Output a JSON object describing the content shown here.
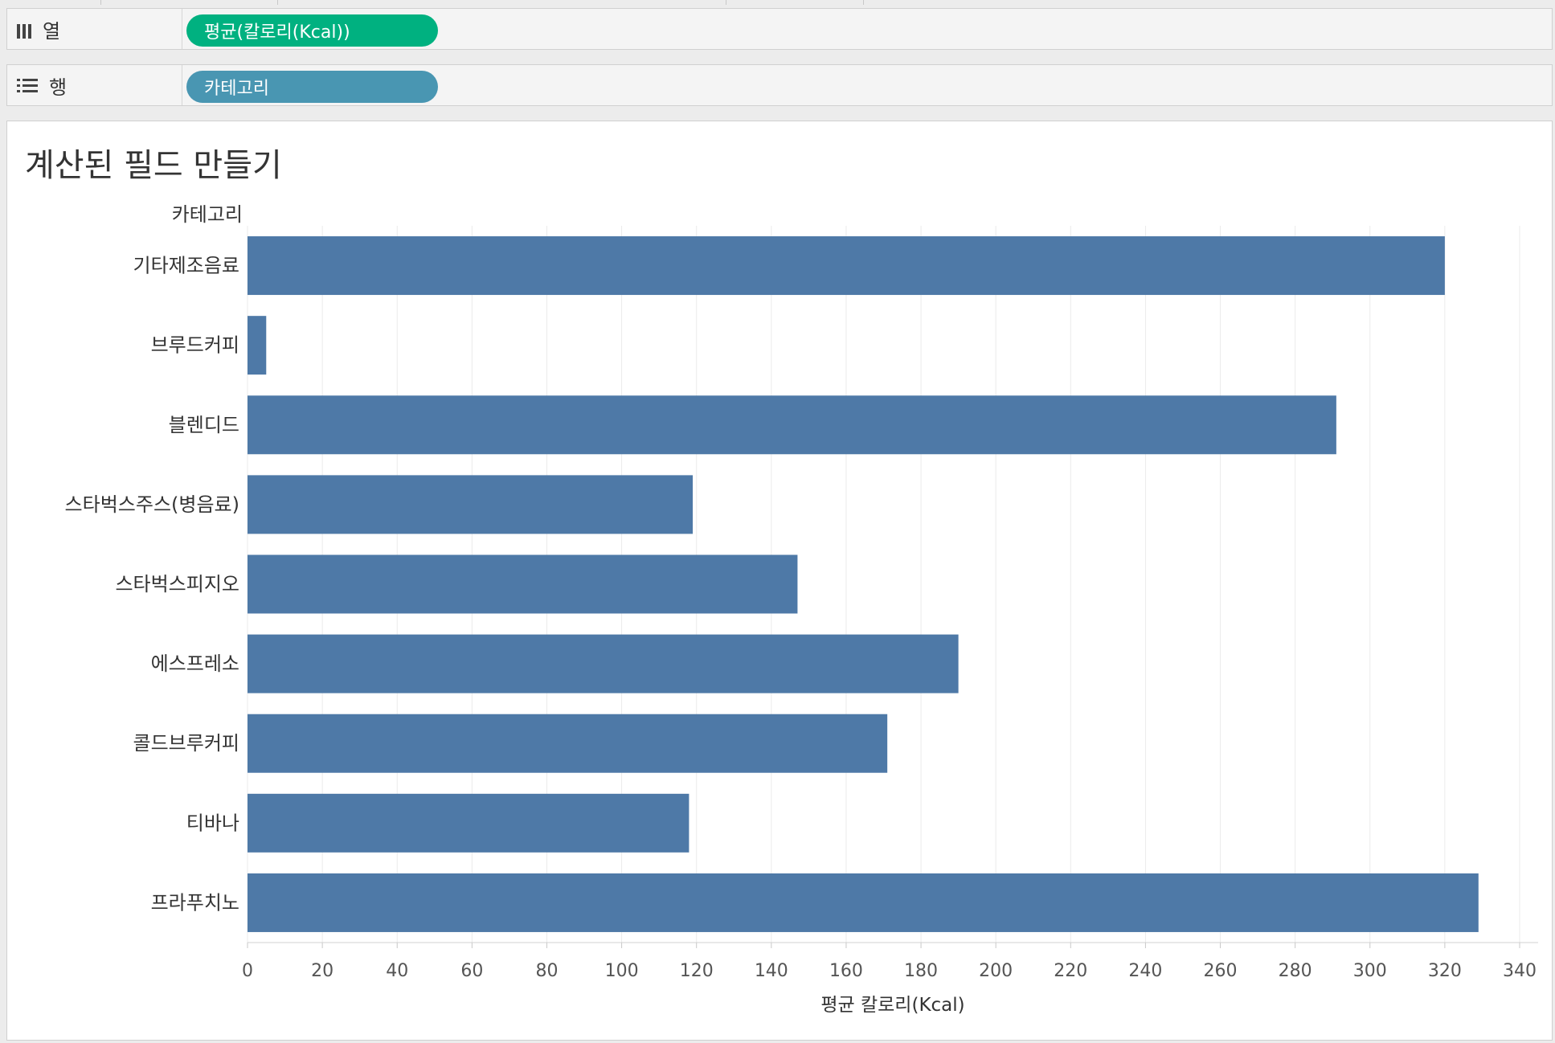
{
  "columns_shelf": {
    "label": "열",
    "pill": "평균(칼로리(Kcal))",
    "pill_color": "#00b180"
  },
  "rows_shelf": {
    "label": "행",
    "pill": "카테고리",
    "pill_color": "#4996b2"
  },
  "sheet": {
    "title": "계산된 필드 만들기"
  },
  "chart_data": {
    "type": "bar",
    "orientation": "horizontal",
    "row_header": "카테고리",
    "categories": [
      "기타제조음료",
      "브루드커피",
      "블렌디드",
      "스타벅스주스(병음료)",
      "스타벅스피지오",
      "에스프레소",
      "콜드브루커피",
      "티바나",
      "프라푸치노"
    ],
    "values": [
      320,
      5,
      291,
      119,
      147,
      190,
      171,
      118,
      329
    ],
    "xlabel": "평균 칼로리(Kcal)",
    "xlim": [
      0,
      340
    ],
    "xticks": [
      0,
      20,
      40,
      60,
      80,
      100,
      120,
      140,
      160,
      180,
      200,
      220,
      240,
      260,
      280,
      300,
      320,
      340
    ],
    "bar_color": "#4e79a7",
    "grid": true
  }
}
